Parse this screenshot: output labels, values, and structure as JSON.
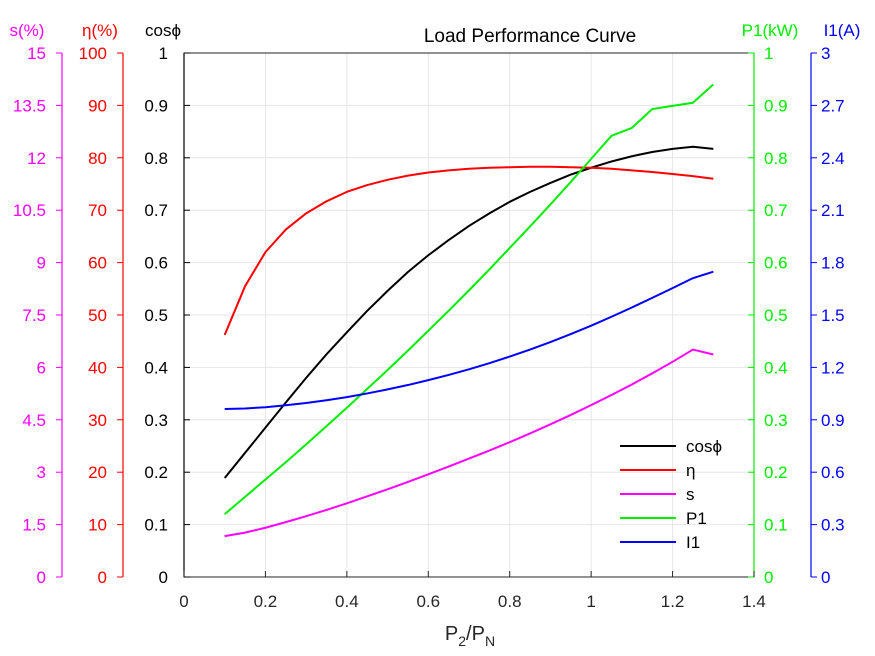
{
  "chart_data": {
    "type": "line",
    "title": "Load Performance Curve",
    "xlabel": "P2/PN",
    "xlabel_parts": {
      "main1": "P",
      "sub1": "2",
      "slash": "/P",
      "sub2": "N"
    },
    "xlim": [
      0,
      1.4
    ],
    "x_ticks": [
      "0",
      "0.2",
      "0.4",
      "0.6",
      "0.8",
      "1",
      "1.2",
      "1.4"
    ],
    "grid": true,
    "legend_position": "bottom-right",
    "axes": [
      {
        "id": "s",
        "label": "s(%)",
        "side": "left",
        "color": "#ff00ff",
        "ylim": [
          0,
          15
        ],
        "ticks": [
          "0",
          "1.5",
          "3",
          "4.5",
          "6",
          "7.5",
          "9",
          "10.5",
          "12",
          "13.5",
          "15"
        ]
      },
      {
        "id": "eta",
        "label": "η(%)",
        "side": "left",
        "color": "#ff0000",
        "ylim": [
          0,
          100
        ],
        "ticks": [
          "0",
          "10",
          "20",
          "30",
          "40",
          "50",
          "60",
          "70",
          "80",
          "90",
          "100"
        ]
      },
      {
        "id": "cos",
        "label": "cosϕ",
        "side": "left",
        "color": "#000000",
        "ylim": [
          0,
          1
        ],
        "ticks": [
          "0",
          "0.1",
          "0.2",
          "0.3",
          "0.4",
          "0.5",
          "0.6",
          "0.7",
          "0.8",
          "0.9",
          "1"
        ]
      },
      {
        "id": "p1",
        "label": "P1(kW)",
        "side": "right",
        "color": "#00ee00",
        "ylim": [
          0,
          1
        ],
        "ticks": [
          "0",
          "0.1",
          "0.2",
          "0.3",
          "0.4",
          "0.5",
          "0.6",
          "0.7",
          "0.8",
          "0.9",
          "1"
        ]
      },
      {
        "id": "i1",
        "label": "I1(A)",
        "side": "right",
        "color": "#0000ff",
        "ylim": [
          0,
          3
        ],
        "ticks": [
          "0",
          "0.3",
          "0.6",
          "0.9",
          "1.2",
          "1.5",
          "1.8",
          "2.1",
          "2.4",
          "2.7",
          "3"
        ]
      }
    ],
    "x": [
      0.1,
      0.15,
      0.2,
      0.25,
      0.3,
      0.35,
      0.4,
      0.45,
      0.5,
      0.55,
      0.6,
      0.65,
      0.7,
      0.75,
      0.8,
      0.85,
      0.9,
      0.95,
      1.0,
      1.05,
      1.1,
      1.15,
      1.2,
      1.25,
      1.3
    ],
    "series": [
      {
        "name": "cosϕ",
        "axis": "cos",
        "color": "#000000",
        "values": [
          0.189,
          0.237,
          0.285,
          0.333,
          0.38,
          0.425,
          0.467,
          0.508,
          0.546,
          0.582,
          0.614,
          0.643,
          0.67,
          0.694,
          0.716,
          0.735,
          0.752,
          0.768,
          0.781,
          0.793,
          0.803,
          0.811,
          0.817,
          0.821,
          0.817
        ]
      },
      {
        "name": "η",
        "axis": "eta",
        "color": "#ff0000",
        "values": [
          46.2,
          55.5,
          62.0,
          66.3,
          69.4,
          71.7,
          73.5,
          74.8,
          75.8,
          76.6,
          77.2,
          77.6,
          77.9,
          78.1,
          78.2,
          78.3,
          78.3,
          78.2,
          78.1,
          77.9,
          77.6,
          77.3,
          76.9,
          76.5,
          76.0
        ]
      },
      {
        "name": "s",
        "axis": "s",
        "color": "#ff00ff",
        "values": [
          1.17,
          1.27,
          1.41,
          1.57,
          1.74,
          1.92,
          2.11,
          2.31,
          2.51,
          2.72,
          2.94,
          3.16,
          3.39,
          3.62,
          3.86,
          4.11,
          4.37,
          4.64,
          4.92,
          5.21,
          5.51,
          5.83,
          6.16,
          6.51,
          6.37
        ]
      },
      {
        "name": "P1",
        "axis": "p1",
        "color": "#00ee00",
        "values": [
          0.12,
          0.153,
          0.186,
          0.219,
          0.253,
          0.288,
          0.323,
          0.359,
          0.395,
          0.432,
          0.47,
          0.508,
          0.547,
          0.587,
          0.628,
          0.669,
          0.711,
          0.754,
          0.798,
          0.842,
          0.857,
          0.893,
          0.899,
          0.905,
          0.94
        ]
      },
      {
        "name": "I1",
        "axis": "i1",
        "color": "#0000ff",
        "values": [
          0.962,
          0.965,
          0.972,
          0.983,
          0.996,
          1.012,
          1.03,
          1.051,
          1.074,
          1.099,
          1.127,
          1.157,
          1.189,
          1.224,
          1.262,
          1.302,
          1.345,
          1.391,
          1.439,
          1.49,
          1.543,
          1.598,
          1.654,
          1.711,
          1.748
        ]
      }
    ]
  }
}
